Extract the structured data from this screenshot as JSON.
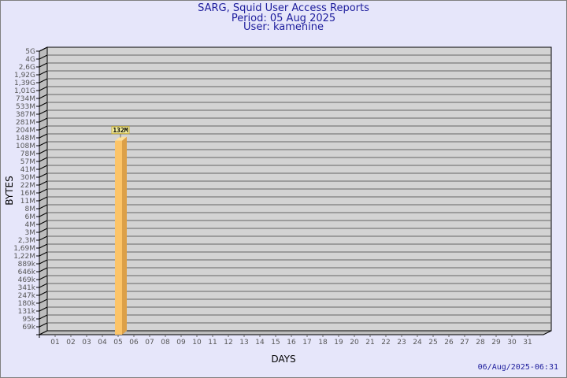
{
  "chart_data": {
    "type": "bar",
    "title": "SARG, Squid User Access Reports",
    "subtitle_lines": [
      "Period: 05 Aug 2025",
      "User: kamenine"
    ],
    "xlabel": "DAYS",
    "ylabel": "BYTES",
    "y_scale": "log",
    "y_tick_labels": [
      "5G",
      "4G",
      "2,6G",
      "1,92G",
      "1,39G",
      "1,01G",
      "734M",
      "533M",
      "387M",
      "281M",
      "204M",
      "148M",
      "108M",
      "78M",
      "57M",
      "41M",
      "30M",
      "22M",
      "16M",
      "11M",
      "8M",
      "6M",
      "4M",
      "3M",
      "2,3M",
      "1,69M",
      "1,22M",
      "889k",
      "646k",
      "469k",
      "341k",
      "247k",
      "180k",
      "131k",
      "95k",
      "69k"
    ],
    "categories": [
      "01",
      "02",
      "03",
      "04",
      "05",
      "06",
      "07",
      "08",
      "09",
      "10",
      "11",
      "12",
      "13",
      "14",
      "15",
      "16",
      "17",
      "18",
      "19",
      "20",
      "21",
      "22",
      "23",
      "24",
      "25",
      "26",
      "27",
      "28",
      "29",
      "30",
      "31"
    ],
    "bars": [
      {
        "day": "05",
        "value_label": "132M",
        "value_bytes": 132000000
      }
    ],
    "grid": true,
    "colors": {
      "bar": "#fcc468",
      "bar_side": "#dca048",
      "wall": "#d3d3d3",
      "text": "#1c1c9c",
      "background": "#e6e6fa"
    }
  },
  "footer": {
    "timestamp": "06/Aug/2025-06:31"
  }
}
